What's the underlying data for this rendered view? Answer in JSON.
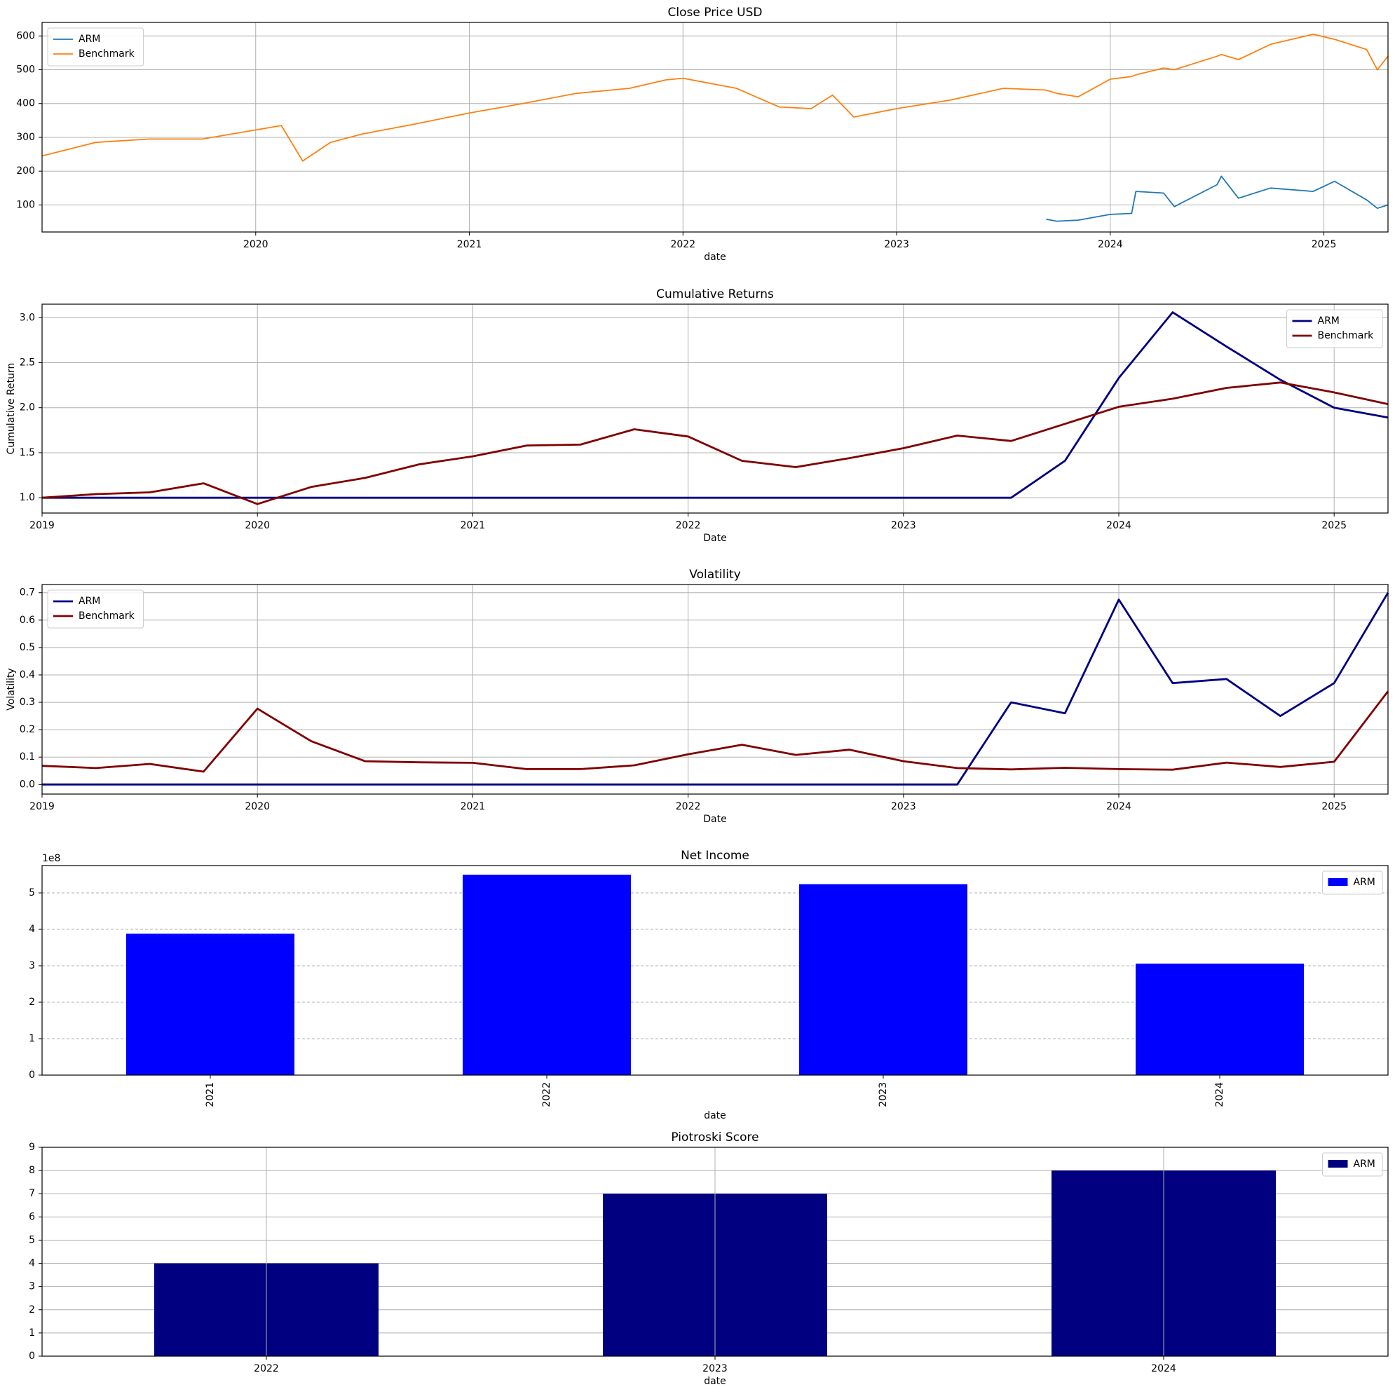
{
  "chart_data": [
    {
      "type": "line",
      "title": "Close Price USD",
      "xlabel": "date",
      "grid": "both",
      "legend": "upper left",
      "x": [
        2019.0,
        2019.25,
        2019.5,
        2019.75,
        2020.0,
        2020.12,
        2020.22,
        2020.35,
        2020.5,
        2020.75,
        2021.0,
        2021.25,
        2021.5,
        2021.75,
        2021.92,
        2022.0,
        2022.25,
        2022.45,
        2022.6,
        2022.7,
        2022.8,
        2023.0,
        2023.25,
        2023.5,
        2023.7,
        2023.75,
        2023.85,
        2024.0,
        2024.1,
        2024.12,
        2024.25,
        2024.3,
        2024.5,
        2024.52,
        2024.6,
        2024.75,
        2024.95,
        2025.05,
        2025.2,
        2025.25,
        2025.3
      ],
      "series": [
        {
          "name": "ARM",
          "color": "#1f77b4",
          "values": [
            null,
            null,
            null,
            null,
            null,
            null,
            null,
            null,
            null,
            null,
            null,
            null,
            null,
            null,
            null,
            null,
            null,
            null,
            null,
            null,
            null,
            null,
            null,
            null,
            58,
            52,
            55,
            72,
            75,
            140,
            135,
            95,
            160,
            185,
            120,
            150,
            140,
            170,
            115,
            90,
            100
          ]
        },
        {
          "name": "Benchmark",
          "color": "#ff7f0e",
          "values": [
            245,
            285,
            295,
            295,
            322,
            335,
            230,
            285,
            310,
            340,
            372,
            400,
            430,
            445,
            470,
            475,
            445,
            390,
            385,
            425,
            360,
            385,
            410,
            445,
            440,
            430,
            420,
            472,
            480,
            485,
            505,
            500,
            540,
            545,
            530,
            575,
            605,
            590,
            560,
            500,
            540
          ]
        }
      ],
      "xlim": [
        2019.0,
        2025.3
      ],
      "xticks": [
        2020,
        2021,
        2022,
        2023,
        2024,
        2025
      ],
      "ylim": [
        20,
        640
      ],
      "yticks": [
        100,
        200,
        300,
        400,
        500,
        600
      ]
    },
    {
      "type": "line",
      "title": "Cumulative Returns",
      "xlabel": "Date",
      "ylabel": "Cumulative Return",
      "grid": "both",
      "legend": "upper right",
      "x": [
        2019.0,
        2019.25,
        2019.5,
        2019.75,
        2020.0,
        2020.25,
        2020.5,
        2020.75,
        2021.0,
        2021.25,
        2021.5,
        2021.75,
        2022.0,
        2022.25,
        2022.5,
        2022.75,
        2023.0,
        2023.25,
        2023.5,
        2023.75,
        2024.0,
        2024.25,
        2024.5,
        2024.75,
        2025.0,
        2025.25
      ],
      "series": [
        {
          "name": "ARM",
          "color": "#000080",
          "values": [
            1,
            1,
            1,
            1,
            1,
            1,
            1,
            1,
            1,
            1,
            1,
            1,
            1,
            1,
            1,
            1,
            1,
            1,
            1,
            1.41,
            2.33,
            3.06,
            2.68,
            2.31,
            2.0,
            1.89
          ]
        },
        {
          "name": "Benchmark",
          "color": "#800000",
          "values": [
            1.0,
            1.04,
            1.06,
            1.16,
            0.93,
            1.12,
            1.22,
            1.37,
            1.46,
            1.58,
            1.59,
            1.76,
            1.68,
            1.41,
            1.34,
            1.44,
            1.55,
            1.69,
            1.63,
            1.82,
            2.01,
            2.1,
            2.22,
            2.28,
            2.17,
            2.04
          ]
        }
      ],
      "xlim": [
        2019.0,
        2025.25
      ],
      "xticks": [
        2019,
        2020,
        2021,
        2022,
        2023,
        2024,
        2025
      ],
      "ylim": [
        0.83,
        3.15
      ],
      "yticks": [
        {
          "value": 1,
          "label": "1.0"
        },
        1.5,
        {
          "value": 2,
          "label": "2.0"
        },
        2.5,
        {
          "value": 3,
          "label": "3.0"
        }
      ]
    },
    {
      "type": "line",
      "title": "Volatility",
      "xlabel": "Date",
      "ylabel": "Volatility",
      "grid": "both",
      "legend": "upper left",
      "x": [
        2019.0,
        2019.25,
        2019.5,
        2019.75,
        2020.0,
        2020.25,
        2020.5,
        2020.75,
        2021.0,
        2021.25,
        2021.5,
        2021.75,
        2022.0,
        2022.25,
        2022.5,
        2022.75,
        2023.0,
        2023.25,
        2023.5,
        2023.75,
        2024.0,
        2024.25,
        2024.5,
        2024.75,
        2025.0,
        2025.25
      ],
      "series": [
        {
          "name": "ARM",
          "color": "#000080",
          "values": [
            0,
            0,
            0,
            0,
            0,
            0,
            0,
            0,
            0,
            0,
            0,
            0,
            0,
            0,
            0,
            0,
            0,
            0,
            0.3,
            0.26,
            0.675,
            0.37,
            0.385,
            0.25,
            0.37,
            0.7
          ]
        },
        {
          "name": "Benchmark",
          "color": "#800000",
          "values": [
            0.068,
            0.06,
            0.075,
            0.047,
            0.277,
            0.158,
            0.085,
            0.081,
            0.079,
            0.056,
            0.056,
            0.07,
            0.11,
            0.145,
            0.108,
            0.127,
            0.085,
            0.06,
            0.055,
            0.061,
            0.056,
            0.054,
            0.08,
            0.064,
            0.083,
            0.34
          ]
        }
      ],
      "xlim": [
        2019.0,
        2025.25
      ],
      "xticks": [
        2019,
        2020,
        2021,
        2022,
        2023,
        2024,
        2025
      ],
      "ylim": [
        -0.035,
        0.73
      ],
      "yticks": [
        {
          "value": 0,
          "label": "0.0"
        },
        0.1,
        0.2,
        0.3,
        0.4,
        0.5,
        0.6,
        0.7
      ]
    },
    {
      "type": "bar",
      "title": "Net Income",
      "xlabel": "date",
      "grid": "y",
      "grid_style": "dashed",
      "legend": "upper right",
      "offset_text": "1e8",
      "xtick_rotation": 90,
      "categories": [
        "2021",
        "2022",
        "2023",
        "2024"
      ],
      "series": [
        {
          "name": "ARM",
          "color": "#0000ff",
          "values": [
            388000000,
            550000000,
            524000000,
            306000000
          ]
        }
      ],
      "ylim": [
        0,
        575000000
      ],
      "yticks": [
        0,
        {
          "value": 100000000,
          "label": "1"
        },
        {
          "value": 200000000,
          "label": "2"
        },
        {
          "value": 300000000,
          "label": "3"
        },
        {
          "value": 400000000,
          "label": "4"
        },
        {
          "value": 500000000,
          "label": "5"
        }
      ]
    },
    {
      "type": "bar",
      "title": "Piotroski Score",
      "xlabel": "date",
      "grid": "both",
      "legend": "upper right",
      "categories": [
        "2022",
        "2023",
        "2024"
      ],
      "series": [
        {
          "name": "ARM",
          "color": "#000080",
          "values": [
            4,
            7,
            8
          ]
        }
      ],
      "ylim": [
        0,
        9
      ],
      "yticks": [
        0,
        1,
        2,
        3,
        4,
        5,
        6,
        7,
        8,
        9
      ]
    }
  ]
}
